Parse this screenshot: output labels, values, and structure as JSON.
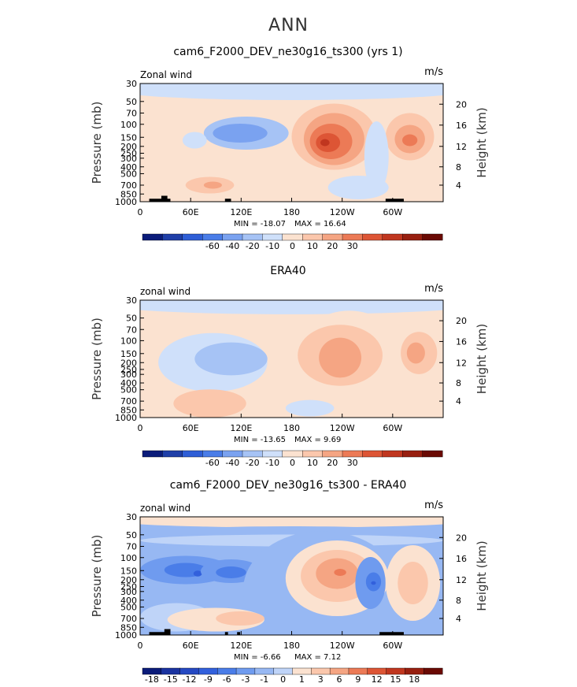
{
  "figure": {
    "title": "ANN"
  },
  "chart_data": [
    {
      "type": "heatmap",
      "title": "cam6_F2000_DEV_ne30g16_ts300 (yrs 1)",
      "left_label": "Zonal wind",
      "right_label": "m/s",
      "ylabel": "Pressure  (mb)",
      "ylabel_right": "Height  (km)",
      "y_ticks": [
        "30",
        "50",
        "70",
        "100",
        "150",
        "200",
        "250",
        "300",
        "400",
        "500",
        "700",
        "850",
        "1000"
      ],
      "y_ticks_right": [
        "20",
        "16",
        "12",
        "8",
        "4"
      ],
      "x_ticks": [
        "0",
        "60E",
        "120E",
        "180",
        "120W",
        "60W"
      ],
      "min_label": "MIN = -18.07",
      "max_label": "MAX = 16.64",
      "colorbar_labels": [
        "-60",
        "-40",
        "-20",
        "-10",
        "0",
        "10",
        "20",
        "30"
      ],
      "colorbar_colors": [
        "#0b1c7a",
        "#1f3fa8",
        "#2e5ed6",
        "#4a7de8",
        "#7aa2f0",
        "#a6c3f5",
        "#cfe0fa",
        "#fbe2d0",
        "#fbc7ac",
        "#f5a583",
        "#ec7a56",
        "#dd5535",
        "#c0361f",
        "#981f10",
        "#6a0a04"
      ]
    },
    {
      "type": "heatmap",
      "title": "ERA40",
      "left_label": "zonal wind",
      "right_label": "m/s",
      "ylabel": "Pressure  (mb)",
      "ylabel_right": "Height  (km)",
      "y_ticks": [
        "30",
        "50",
        "70",
        "100",
        "150",
        "200",
        "250",
        "300",
        "400",
        "500",
        "700",
        "850",
        "1000"
      ],
      "y_ticks_right": [
        "20",
        "16",
        "12",
        "8",
        "4"
      ],
      "x_ticks": [
        "0",
        "60E",
        "120E",
        "180",
        "120W",
        "60W"
      ],
      "min_label": "MIN = -13.65",
      "max_label": "MAX =  9.69",
      "colorbar_labels": [
        "-60",
        "-40",
        "-20",
        "-10",
        "0",
        "10",
        "20",
        "30"
      ],
      "colorbar_colors": [
        "#0b1c7a",
        "#1f3fa8",
        "#2e5ed6",
        "#4a7de8",
        "#7aa2f0",
        "#a6c3f5",
        "#cfe0fa",
        "#fbe2d0",
        "#fbc7ac",
        "#f5a583",
        "#ec7a56",
        "#dd5535",
        "#c0361f",
        "#981f10",
        "#6a0a04"
      ]
    },
    {
      "type": "heatmap",
      "title": "cam6_F2000_DEV_ne30g16_ts300 - ERA40",
      "left_label": "zonal wind",
      "right_label": "m/s",
      "ylabel": "Pressure  (mb)",
      "ylabel_right": "Height  (km)",
      "y_ticks": [
        "30",
        "50",
        "70",
        "100",
        "150",
        "200",
        "250",
        "300",
        "400",
        "500",
        "700",
        "850",
        "1000"
      ],
      "y_ticks_right": [
        "20",
        "16",
        "12",
        "8",
        "4"
      ],
      "x_ticks": [
        "0",
        "60E",
        "120E",
        "180",
        "120W",
        "60W"
      ],
      "min_label": "MIN =  -6.66",
      "max_label": "MAX =  7.12",
      "colorbar_labels": [
        "-18",
        "-15",
        "-12",
        "-9",
        "-6",
        "-3",
        "-1",
        "0",
        "1",
        "3",
        "6",
        "9",
        "12",
        "15",
        "18"
      ],
      "colorbar_colors": [
        "#0b1c7a",
        "#1a33a0",
        "#2549c2",
        "#3260dc",
        "#4a7de8",
        "#6f9bef",
        "#97b8f3",
        "#bfd4f8",
        "#fbe2d0",
        "#fbc7ac",
        "#f5a583",
        "#ec7a56",
        "#dd5535",
        "#c0361f",
        "#981f10",
        "#6a0a04"
      ]
    }
  ]
}
